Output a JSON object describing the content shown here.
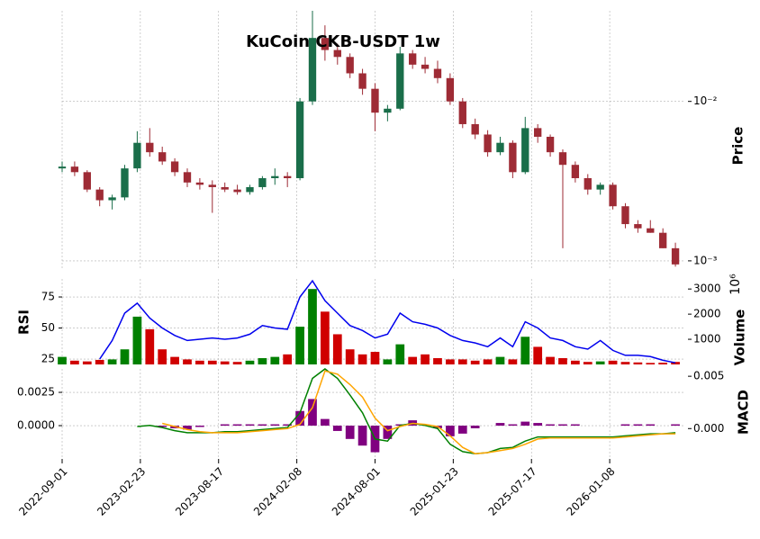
{
  "chart_data": {
    "type": "candlestick",
    "title": "KuCoin CKB-USDT 1w",
    "x": [
      "2022-09-01",
      "2022-09-29",
      "2022-10-27",
      "2022-11-24",
      "2022-12-22",
      "2023-01-19",
      "2023-02-16",
      "2023-03-16",
      "2023-04-13",
      "2023-05-11",
      "2023-06-08",
      "2023-07-06",
      "2023-08-03",
      "2023-08-31",
      "2023-09-28",
      "2023-10-26",
      "2023-11-23",
      "2023-12-21",
      "2024-01-18",
      "2024-02-15",
      "2024-03-14",
      "2024-04-11",
      "2024-05-09",
      "2024-06-06",
      "2024-07-04",
      "2024-08-01",
      "2024-08-29",
      "2024-09-26",
      "2024-10-24",
      "2024-11-21",
      "2024-12-19",
      "2025-01-16",
      "2025-02-13",
      "2025-03-13",
      "2025-04-10",
      "2025-05-08",
      "2025-06-05",
      "2025-07-03",
      "2025-07-31",
      "2025-08-28",
      "2025-09-25",
      "2025-10-23",
      "2025-11-20",
      "2025-12-18",
      "2026-01-15",
      "2026-02-12",
      "2026-03-12",
      "2026-04-09",
      "2026-05-07",
      "2026-06-04"
    ],
    "xlim": [
      "2022-09-01",
      "2026-06-24"
    ],
    "xticks": [
      "2022-09-01",
      "2023-02-23",
      "2023-08-17",
      "2024-02-08",
      "2024-08-01",
      "2025-01-23",
      "2025-07-17",
      "2026-01-08"
    ],
    "panels": [
      {
        "type": "candlestick",
        "ylabel": "Price",
        "log": true,
        "grid": true,
        "ylim": [
          0.0009,
          0.037
        ],
        "yticks": [
          {
            "value": 0.001,
            "label": "10⁻³"
          },
          {
            "value": 0.01,
            "label": "10⁻²"
          }
        ],
        "up_color": "#1a6e4a",
        "down_color": "#9e2b35",
        "open": [
          0.0038,
          0.0039,
          0.0036,
          0.0028,
          0.0024,
          0.0025,
          0.0038,
          0.0055,
          0.0048,
          0.0042,
          0.0036,
          0.0031,
          0.003,
          0.0029,
          0.0028,
          0.0027,
          0.0029,
          0.0033,
          0.0034,
          0.0033,
          0.01,
          0.025,
          0.021,
          0.019,
          0.015,
          0.012,
          0.0085,
          0.009,
          0.02,
          0.017,
          0.016,
          0.014,
          0.01,
          0.0072,
          0.0062,
          0.0048,
          0.0055,
          0.0036,
          0.0068,
          0.006,
          0.0048,
          0.004,
          0.0033,
          0.0028,
          0.003,
          0.0022,
          0.0017,
          0.0016,
          0.0015,
          0.0012
        ],
        "high": [
          0.0042,
          0.0042,
          0.0037,
          0.0029,
          0.0026,
          0.004,
          0.0065,
          0.0068,
          0.0052,
          0.0044,
          0.0038,
          0.0033,
          0.0032,
          0.0031,
          0.003,
          0.003,
          0.0034,
          0.0038,
          0.0036,
          0.0105,
          0.037,
          0.03,
          0.023,
          0.02,
          0.016,
          0.013,
          0.0095,
          0.022,
          0.021,
          0.019,
          0.018,
          0.015,
          0.0105,
          0.0078,
          0.0066,
          0.006,
          0.0057,
          0.008,
          0.0072,
          0.0062,
          0.005,
          0.0042,
          0.0035,
          0.0031,
          0.0031,
          0.0023,
          0.0018,
          0.0018,
          0.0016,
          0.0013
        ],
        "low": [
          0.0036,
          0.0034,
          0.0027,
          0.0022,
          0.0021,
          0.0024,
          0.0036,
          0.0045,
          0.004,
          0.0034,
          0.0029,
          0.0028,
          0.002,
          0.0027,
          0.0026,
          0.0026,
          0.0028,
          0.003,
          0.0029,
          0.0032,
          0.0095,
          0.018,
          0.017,
          0.014,
          0.011,
          0.0065,
          0.0075,
          0.0088,
          0.016,
          0.015,
          0.013,
          0.0095,
          0.0068,
          0.0058,
          0.0045,
          0.0046,
          0.0033,
          0.0035,
          0.0055,
          0.0045,
          0.0012,
          0.0031,
          0.0026,
          0.0026,
          0.0021,
          0.0016,
          0.0015,
          0.0015,
          0.0012,
          0.00092
        ],
        "close": [
          0.0039,
          0.0036,
          0.0028,
          0.0024,
          0.0025,
          0.0038,
          0.0055,
          0.0048,
          0.0042,
          0.0036,
          0.0031,
          0.003,
          0.0029,
          0.0028,
          0.0027,
          0.0029,
          0.0033,
          0.0034,
          0.0033,
          0.01,
          0.025,
          0.021,
          0.019,
          0.015,
          0.012,
          0.0085,
          0.009,
          0.02,
          0.017,
          0.016,
          0.014,
          0.01,
          0.0072,
          0.0062,
          0.0048,
          0.0055,
          0.0036,
          0.0068,
          0.006,
          0.0048,
          0.004,
          0.0033,
          0.0028,
          0.003,
          0.0022,
          0.0017,
          0.0016,
          0.0015,
          0.0012,
          0.00095
        ]
      },
      {
        "type": "line",
        "ylabel": "RSI",
        "grid": true,
        "ylim": [
          20.7,
          89.5
        ],
        "yticks": [
          25,
          50,
          75
        ],
        "y2label": "Volume",
        "y2offset": "10⁶",
        "y2lim": [
          0,
          3400
        ],
        "y2ticks": [
          1000,
          2000,
          3000
        ],
        "series": [
          {
            "type": "bar",
            "axis": "y2",
            "up_color": "#008000",
            "down_color": "#d00000",
            "values": [
              300,
              150,
              120,
              180,
              200,
              600,
              1900,
              1400,
              600,
              300,
              200,
              150,
              150,
              120,
              100,
              150,
              250,
              300,
              400,
              1500,
              3000,
              2100,
              1200,
              600,
              400,
              500,
              200,
              800,
              300,
              400,
              250,
              200,
              200,
              150,
              200,
              300,
              200,
              1100,
              700,
              300,
              250,
              150,
              100,
              120,
              150,
              100,
              80,
              60,
              70,
              100
            ]
          },
          {
            "type": "line",
            "color": "#0000ee",
            "values": [
              null,
              null,
              null,
              25,
              40,
              62,
              70,
              58,
              50,
              44,
              40,
              41,
              42,
              41,
              42,
              45,
              52,
              50,
              49,
              75,
              88,
              72,
              62,
              52,
              48,
              42,
              45,
              62,
              55,
              53,
              50,
              44,
              40,
              38,
              35,
              42,
              35,
              55,
              50,
              42,
              40,
              35,
              33,
              40,
              32,
              28,
              28,
              27,
              24,
              22
            ]
          }
        ]
      },
      {
        "type": "line",
        "ylabel": "MACD",
        "grid": true,
        "ylim": [
          -0.0025,
          0.00426
        ],
        "yticks": [
          {
            "value": 0,
            "label": "0.0000"
          },
          {
            "value": 0.0025,
            "label": "0.0025"
          }
        ],
        "y2lim": [
          -0.0029,
          0.0057
        ],
        "y2ticks": [
          {
            "value": 0,
            "label": "0.000"
          },
          {
            "value": 0.005,
            "label": "0.005"
          }
        ],
        "series": [
          {
            "type": "bar",
            "color": "#800080",
            "values": [
              null,
              null,
              null,
              null,
              null,
              null,
              null,
              null,
              -0.0001,
              -0.0002,
              -0.0003,
              -0.0001,
              0,
              0.0001,
              0.0001,
              0.0001,
              0.0001,
              0.0001,
              0.0001,
              0.0011,
              0.002,
              0.0005,
              -0.0004,
              -0.001,
              -0.0015,
              -0.002,
              -0.001,
              0.0001,
              0.0004,
              0,
              -0.0002,
              -0.0008,
              -0.0006,
              -0.0002,
              0,
              0.0002,
              0.0001,
              0.0003,
              0.0002,
              0.0001,
              0.0001,
              0.0001,
              0,
              0,
              0,
              0.0001,
              0.0001,
              0.0001,
              0,
              0.0001
            ]
          },
          {
            "type": "line",
            "axis": "y2",
            "color": "#008000",
            "values": [
              null,
              null,
              null,
              null,
              null,
              null,
              0.0002,
              0.0003,
              0.0001,
              -0.0002,
              -0.0004,
              -0.0004,
              -0.0004,
              -0.0003,
              -0.0003,
              -0.0002,
              -0.0001,
              0,
              0.0001,
              0.0015,
              0.0048,
              0.0057,
              0.0048,
              0.0032,
              0.0015,
              -0.001,
              -0.0012,
              0.0003,
              0.0005,
              0.0003,
              0,
              -0.0015,
              -0.0022,
              -0.0024,
              -0.0023,
              -0.0019,
              -0.0018,
              -0.0012,
              -0.0008,
              -0.0008,
              -0.0008,
              -0.0008,
              -0.0008,
              -0.0008,
              -0.0008,
              -0.0007,
              -0.0006,
              -0.0005,
              -0.0005,
              -0.0004
            ]
          },
          {
            "type": "line",
            "axis": "y2",
            "color": "#ffa500",
            "values": [
              null,
              null,
              null,
              null,
              null,
              null,
              null,
              null,
              0.0005,
              0.0002,
              -0.0001,
              -0.0003,
              -0.0004,
              -0.0004,
              -0.0004,
              -0.0003,
              -0.0002,
              -0.0001,
              0,
              0.0004,
              0.002,
              0.0055,
              0.0052,
              0.0042,
              0.003,
              0.001,
              -0.0002,
              0.0002,
              0.0005,
              0.0004,
              0.0002,
              -0.0007,
              -0.0018,
              -0.0024,
              -0.0023,
              -0.0021,
              -0.0019,
              -0.0015,
              -0.001,
              -0.0009,
              -0.0009,
              -0.0009,
              -0.0009,
              -0.0009,
              -0.0009,
              -0.0008,
              -0.0007,
              -0.0006,
              -0.0005,
              -0.0005
            ]
          }
        ]
      }
    ]
  }
}
